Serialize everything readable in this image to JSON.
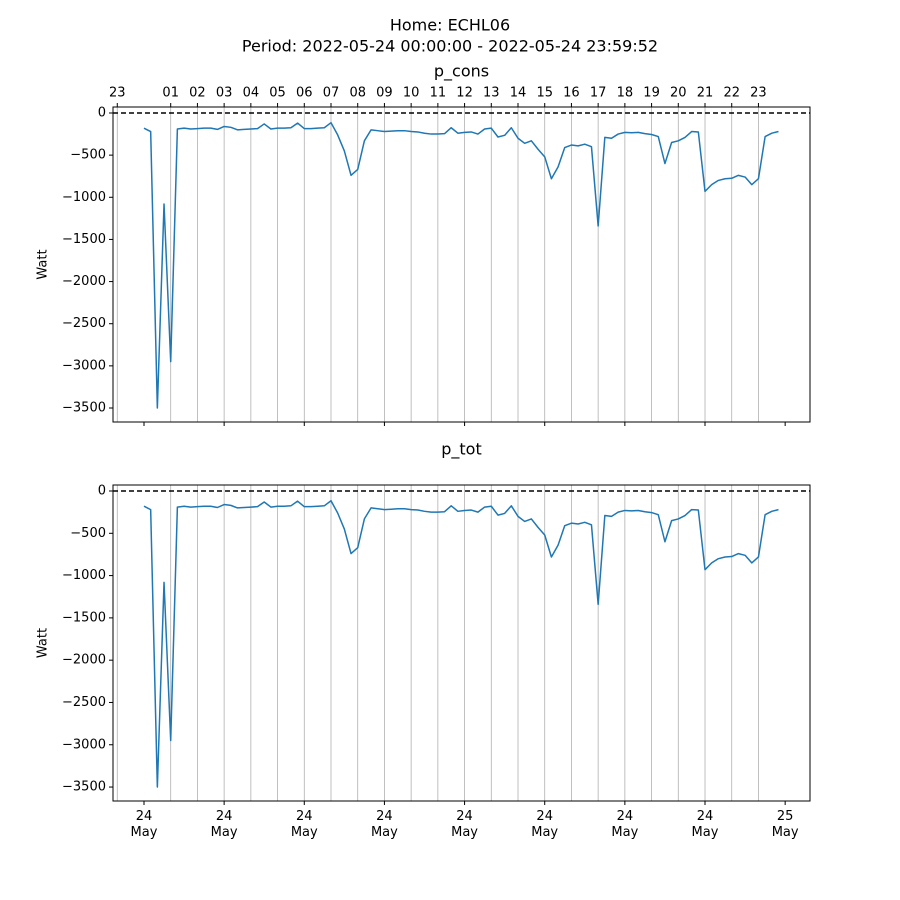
{
  "title": "Home: ECHL06",
  "subtitle": "Period: 2022-05-24 00:00:00 - 2022-05-24 23:59:52",
  "chart_data": [
    {
      "type": "line",
      "title": "p_cons",
      "ylabel": "Watt",
      "color": "#1f77b4",
      "grid": true,
      "hline": 0,
      "xlim": [
        -1.16,
        24.93
      ],
      "ylim": [
        -3666,
        71
      ],
      "yticks": [
        0,
        {
          "value": -500,
          "label": "−500"
        },
        {
          "value": -1000,
          "label": "−1000"
        },
        {
          "value": -1500,
          "label": "−1500"
        },
        {
          "value": -2000,
          "label": "−2000"
        },
        {
          "value": -2500,
          "label": "−2500"
        },
        {
          "value": -3000,
          "label": "−3000"
        },
        {
          "value": -3500,
          "label": "−3500"
        }
      ],
      "x2ticks": [
        {
          "value": -1,
          "label": "23"
        },
        {
          "value": 1,
          "label": "01"
        },
        {
          "value": 2,
          "label": "02"
        },
        {
          "value": 3,
          "label": "03"
        },
        {
          "value": 4,
          "label": "04"
        },
        {
          "value": 5,
          "label": "05"
        },
        {
          "value": 6,
          "label": "06"
        },
        {
          "value": 7,
          "label": "07"
        },
        {
          "value": 8,
          "label": "08"
        },
        {
          "value": 9,
          "label": "09"
        },
        10,
        11,
        12,
        13,
        14,
        15,
        16,
        17,
        18,
        19,
        20,
        21,
        22,
        23
      ],
      "x": [
        0,
        0.25,
        0.5,
        0.75,
        1,
        1.25,
        1.5,
        1.75,
        2,
        2.25,
        2.5,
        2.75,
        3,
        3.25,
        3.5,
        3.75,
        4,
        4.25,
        4.5,
        4.75,
        5,
        5.25,
        5.5,
        5.75,
        6,
        6.25,
        6.5,
        6.75,
        7,
        7.25,
        7.5,
        7.75,
        8,
        8.25,
        8.5,
        8.75,
        9,
        9.25,
        9.5,
        9.75,
        10,
        10.25,
        10.5,
        10.75,
        11,
        11.25,
        11.5,
        11.75,
        12,
        12.25,
        12.5,
        12.75,
        13,
        13.25,
        13.5,
        13.75,
        14,
        14.25,
        14.5,
        14.75,
        15,
        15.25,
        15.5,
        15.75,
        16,
        16.25,
        16.5,
        16.75,
        17,
        17.25,
        17.5,
        17.75,
        18,
        18.25,
        18.5,
        18.75,
        19,
        19.25,
        19.5,
        19.75,
        20,
        20.25,
        20.5,
        20.75,
        21,
        21.25,
        21.5,
        21.75,
        22,
        22.25,
        22.5,
        22.75,
        23,
        23.25,
        23.5,
        23.75
      ],
      "values": [
        -180,
        -220,
        -3500,
        -1080,
        -2950,
        -190,
        -180,
        -190,
        -185,
        -180,
        -180,
        -195,
        -160,
        -170,
        -200,
        -195,
        -190,
        -185,
        -130,
        -190,
        -180,
        -180,
        -175,
        -120,
        -185,
        -185,
        -180,
        -175,
        -115,
        -260,
        -450,
        -740,
        -670,
        -330,
        -200,
        -210,
        -220,
        -215,
        -210,
        -210,
        -220,
        -225,
        -240,
        -250,
        -250,
        -245,
        -175,
        -240,
        -230,
        -225,
        -250,
        -190,
        -180,
        -285,
        -265,
        -175,
        -300,
        -360,
        -330,
        -430,
        -520,
        -780,
        -640,
        -410,
        -380,
        -390,
        -370,
        -400,
        -1340,
        -290,
        -300,
        -250,
        -230,
        -235,
        -230,
        -245,
        -255,
        -280,
        -600,
        -350,
        -330,
        -290,
        -220,
        -225,
        -930,
        -850,
        -800,
        -780,
        -775,
        -740,
        -760,
        -850,
        -780,
        -280,
        -240,
        -220
      ]
    },
    {
      "type": "line",
      "title": "p_tot",
      "ylabel": "Watt",
      "color": "#1f77b4",
      "grid": true,
      "hline": 0,
      "xlim": [
        -1.16,
        24.93
      ],
      "ylim": [
        -3665,
        71
      ],
      "yticks": [
        0,
        {
          "value": -500,
          "label": "−500"
        },
        {
          "value": -1000,
          "label": "−1000"
        },
        {
          "value": -1500,
          "label": "−1500"
        },
        {
          "value": -2000,
          "label": "−2000"
        },
        {
          "value": -2500,
          "label": "−2500"
        },
        {
          "value": -3000,
          "label": "−3000"
        },
        {
          "value": -3500,
          "label": "−3500"
        }
      ],
      "xticks": [
        {
          "value": 0,
          "label": "24\nMay"
        },
        {
          "value": 3,
          "label": "24\nMay"
        },
        {
          "value": 6,
          "label": "24\nMay"
        },
        {
          "value": 9,
          "label": "24\nMay"
        },
        {
          "value": 12,
          "label": "24\nMay"
        },
        {
          "value": 15,
          "label": "24\nMay"
        },
        {
          "value": 18,
          "label": "24\nMay"
        },
        {
          "value": 21,
          "label": "24\nMay"
        },
        {
          "value": 24,
          "label": "25\nMay"
        }
      ],
      "x": [
        0,
        0.25,
        0.5,
        0.75,
        1,
        1.25,
        1.5,
        1.75,
        2,
        2.25,
        2.5,
        2.75,
        3,
        3.25,
        3.5,
        3.75,
        4,
        4.25,
        4.5,
        4.75,
        5,
        5.25,
        5.5,
        5.75,
        6,
        6.25,
        6.5,
        6.75,
        7,
        7.25,
        7.5,
        7.75,
        8,
        8.25,
        8.5,
        8.75,
        9,
        9.25,
        9.5,
        9.75,
        10,
        10.25,
        10.5,
        10.75,
        11,
        11.25,
        11.5,
        11.75,
        12,
        12.25,
        12.5,
        12.75,
        13,
        13.25,
        13.5,
        13.75,
        14,
        14.25,
        14.5,
        14.75,
        15,
        15.25,
        15.5,
        15.75,
        16,
        16.25,
        16.5,
        16.75,
        17,
        17.25,
        17.5,
        17.75,
        18,
        18.25,
        18.5,
        18.75,
        19,
        19.25,
        19.5,
        19.75,
        20,
        20.25,
        20.5,
        20.75,
        21,
        21.25,
        21.5,
        21.75,
        22,
        22.25,
        22.5,
        22.75,
        23,
        23.25,
        23.5,
        23.75
      ],
      "values": [
        -180,
        -220,
        -3500,
        -1080,
        -2950,
        -190,
        -180,
        -190,
        -185,
        -180,
        -180,
        -195,
        -160,
        -170,
        -200,
        -195,
        -190,
        -185,
        -130,
        -190,
        -180,
        -180,
        -175,
        -120,
        -185,
        -185,
        -180,
        -175,
        -115,
        -260,
        -450,
        -740,
        -670,
        -330,
        -200,
        -210,
        -220,
        -215,
        -210,
        -210,
        -220,
        -225,
        -240,
        -250,
        -250,
        -245,
        -175,
        -240,
        -230,
        -225,
        -250,
        -190,
        -180,
        -285,
        -265,
        -175,
        -300,
        -360,
        -330,
        -430,
        -520,
        -780,
        -640,
        -410,
        -380,
        -390,
        -370,
        -400,
        -1340,
        -290,
        -300,
        -250,
        -230,
        -235,
        -230,
        -245,
        -255,
        -280,
        -600,
        -350,
        -330,
        -290,
        -220,
        -225,
        -930,
        -850,
        -800,
        -780,
        -775,
        -740,
        -760,
        -850,
        -780,
        -280,
        -240,
        -220
      ]
    }
  ]
}
